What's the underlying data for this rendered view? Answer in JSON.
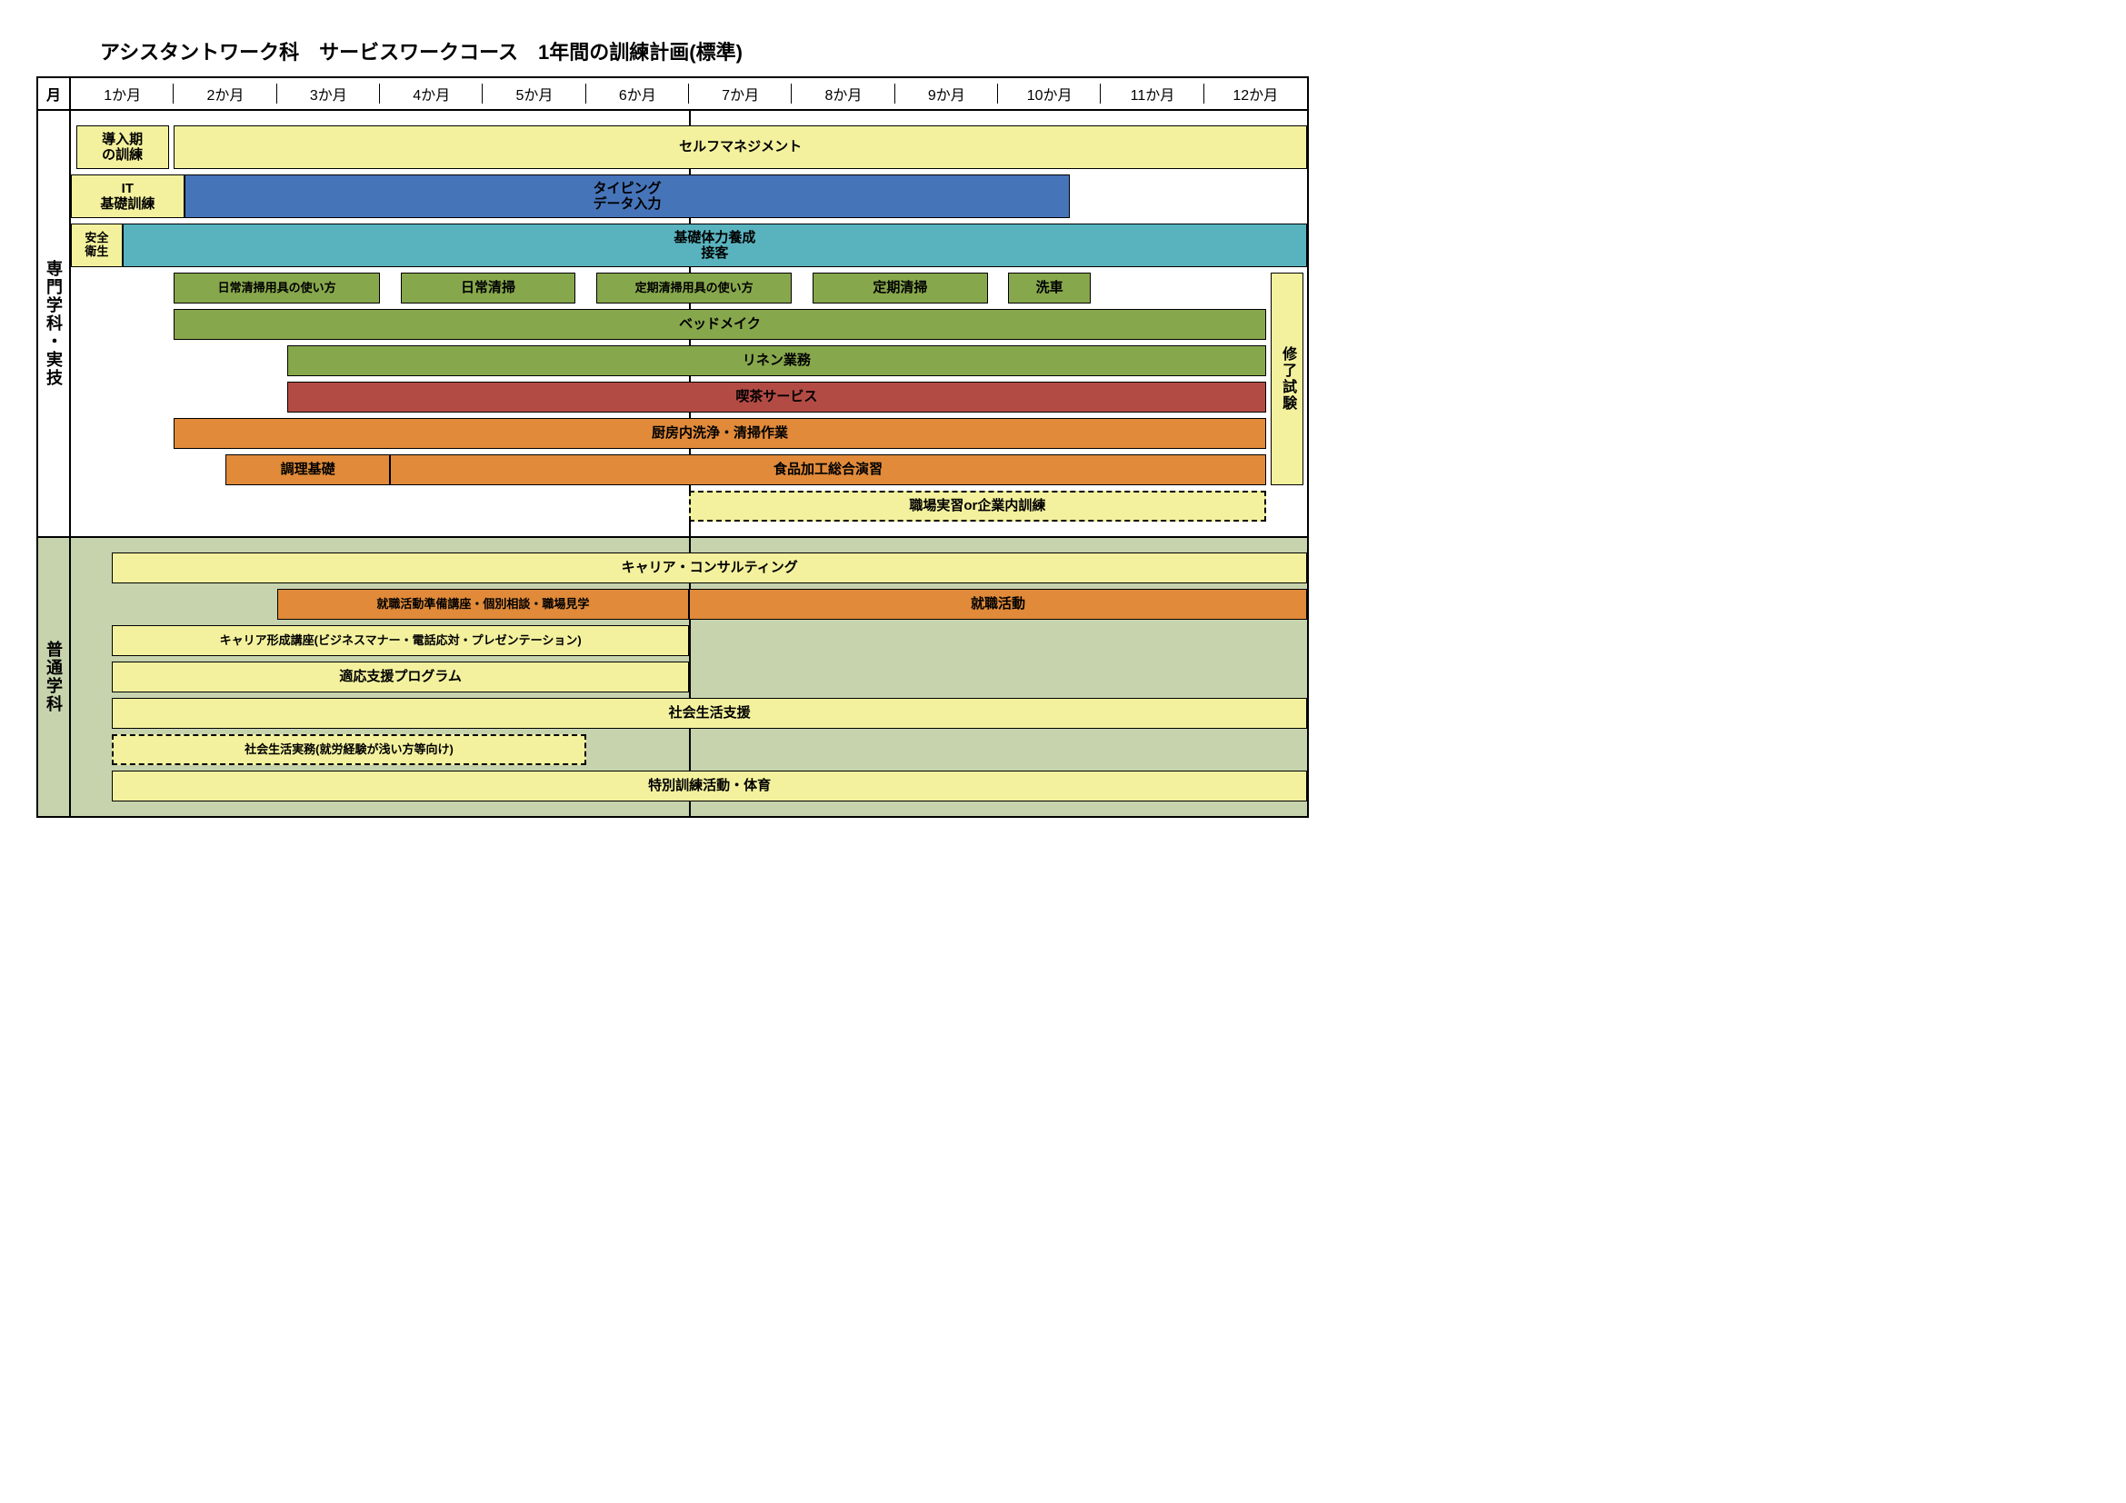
{
  "title": "アシスタントワーク科　サービスワークコース　1年間の訓練計画(標準)",
  "month_header": "月",
  "months": [
    "1か月",
    "2か月",
    "3か月",
    "4か月",
    "5か月",
    "6か月",
    "7か月",
    "8か月",
    "9か月",
    "10か月",
    "11か月",
    "12か月"
  ],
  "chart": {
    "months_total": 12,
    "midline_at": 6,
    "section_a_height_rows": 13,
    "section_b_height_rows": 7,
    "colors": {
      "yellow": "#f3f19d",
      "blue": "#4674b9",
      "teal": "#59b3bf",
      "olive": "#87a74c",
      "brick": "#b34b45",
      "orange": "#e08a3a",
      "sage_bg": "#c6d3ad",
      "white": "#ffffff",
      "black": "#000000"
    },
    "section_labels": {
      "a": "専門学科・実技",
      "b": "普通学科"
    },
    "final_exam": {
      "label": "修了試験",
      "color": "yellow"
    },
    "section_a": [
      {
        "height": "tall",
        "bars": [
          {
            "label": "導入期\nの訓練",
            "start": 0.05,
            "end": 0.95,
            "color": "yellow"
          },
          {
            "label": "セルフマネジメント",
            "start": 1.0,
            "end": 12.0,
            "color": "yellow"
          }
        ]
      },
      {
        "height": "tall",
        "bars": [
          {
            "label": "IT\n基礎訓練",
            "start": 0.0,
            "end": 1.1,
            "color": "yellow"
          },
          {
            "label": "タイピング\nデータ入力",
            "start": 1.1,
            "end": 9.7,
            "color": "blue"
          }
        ]
      },
      {
        "height": "tall",
        "bars": [
          {
            "label": "安全\n衛生",
            "start": 0.0,
            "end": 0.5,
            "color": "yellow",
            "small": true
          },
          {
            "label": "基礎体力養成\n接客",
            "start": 0.5,
            "end": 12.0,
            "color": "teal"
          }
        ]
      },
      {
        "bars": [
          {
            "label": "日常清掃用具の使い方",
            "start": 1.0,
            "end": 3.0,
            "color": "olive",
            "small": true
          },
          {
            "label": "日常清掃",
            "start": 3.2,
            "end": 4.9,
            "color": "olive"
          },
          {
            "label": "定期清掃用具の使い方",
            "start": 5.1,
            "end": 7.0,
            "color": "olive",
            "small": true
          },
          {
            "label": "定期清掃",
            "start": 7.2,
            "end": 8.9,
            "color": "olive"
          },
          {
            "label": "洗車",
            "start": 9.1,
            "end": 9.9,
            "color": "olive"
          }
        ]
      },
      {
        "bars": [
          {
            "label": "ベッドメイク",
            "start": 1.0,
            "end": 11.6,
            "color": "olive"
          }
        ]
      },
      {
        "bars": [
          {
            "label": "リネン業務",
            "start": 2.1,
            "end": 11.6,
            "color": "olive"
          }
        ]
      },
      {
        "bars": [
          {
            "label": "喫茶サービス",
            "start": 2.1,
            "end": 11.6,
            "color": "brick"
          }
        ]
      },
      {
        "bars": [
          {
            "label": "厨房内洗浄・清掃作業",
            "start": 1.0,
            "end": 11.6,
            "color": "orange"
          }
        ]
      },
      {
        "bars": [
          {
            "label": "調理基礎",
            "start": 1.5,
            "end": 3.1,
            "color": "orange"
          },
          {
            "label": "食品加工総合演習",
            "start": 3.1,
            "end": 11.6,
            "color": "orange"
          }
        ]
      },
      {
        "bars": [
          {
            "label": "職場実習or企業内訓練",
            "start": 6.0,
            "end": 11.6,
            "color": "yellow",
            "dashed": true
          }
        ]
      }
    ],
    "section_b": [
      {
        "bars": [
          {
            "label": "キャリア・コンサルティング",
            "start": 0.4,
            "end": 12.0,
            "color": "yellow"
          }
        ]
      },
      {
        "bars": [
          {
            "label": "就職活動準備講座・個別相談・職場見学",
            "start": 2.0,
            "end": 6.0,
            "color": "orange",
            "small": true
          },
          {
            "label": "就職活動",
            "start": 6.0,
            "end": 12.0,
            "color": "orange"
          }
        ]
      },
      {
        "bars": [
          {
            "label": "キャリア形成講座(ビジネスマナー・電話応対・プレゼンテーション)",
            "start": 0.4,
            "end": 6.0,
            "color": "yellow",
            "small": true
          }
        ]
      },
      {
        "bars": [
          {
            "label": "適応支援プログラム",
            "start": 0.4,
            "end": 6.0,
            "color": "yellow"
          }
        ]
      },
      {
        "bars": [
          {
            "label": "社会生活支援",
            "start": 0.4,
            "end": 12.0,
            "color": "yellow"
          }
        ]
      },
      {
        "bars": [
          {
            "label": "社会生活実務(就労経験が浅い方等向け)",
            "start": 0.4,
            "end": 5.0,
            "color": "yellow",
            "dashed": true,
            "small": true
          }
        ]
      },
      {
        "bars": [
          {
            "label": "特別訓練活動・体育",
            "start": 0.4,
            "end": 12.0,
            "color": "yellow"
          }
        ]
      }
    ]
  }
}
